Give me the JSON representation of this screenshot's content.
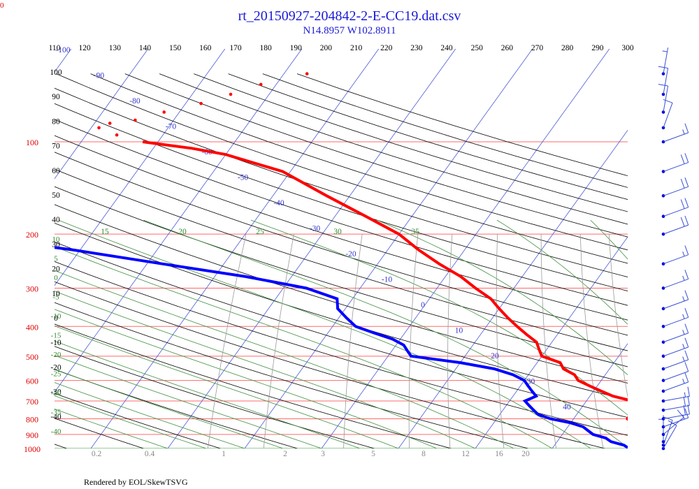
{
  "chart_data": {
    "type": "line",
    "title": "rt_20150927-204842-2-E-CC19.dat.csv",
    "subtitle": "N14.8957 W102.8911",
    "footer": "Rendered by EOL/SkewTSVG",
    "corner_label": "0",
    "pressure_labels": [
      "100",
      "200",
      "300",
      "400",
      "500",
      "600",
      "700",
      "800",
      "900",
      "1000"
    ],
    "theta_top_labels": [
      "110",
      "120",
      "130",
      "140",
      "150",
      "160",
      "170",
      "180",
      "190",
      "200",
      "210",
      "220",
      "230",
      "240",
      "250",
      "260",
      "270",
      "280",
      "290",
      "300"
    ],
    "theta_left_labels": [
      "100",
      "90",
      "80",
      "70",
      "60",
      "50",
      "40",
      "30",
      "20",
      "10",
      "0",
      "-10",
      "-20",
      "-30",
      "-40"
    ],
    "isotherm_labels": [
      "-100",
      "-90",
      "-80",
      "-70",
      "-60",
      "-50",
      "-40",
      "-30",
      "-20",
      "-10",
      "0",
      "10",
      "20",
      "30",
      "40"
    ],
    "moist_labels": [
      "15",
      "20",
      "25",
      "30",
      "35"
    ],
    "moist_left_labels": [
      "10",
      "5",
      "0",
      "-5",
      "-10",
      "-15",
      "-20",
      "-25",
      "-30",
      "-35",
      "-40"
    ],
    "mixing_labels": [
      "0.2",
      "0.4",
      "1",
      "2",
      "3",
      "5",
      "8",
      "12",
      "16",
      "20"
    ],
    "series": [
      {
        "color": "#ff0000",
        "temperature_c": [
          [
            1000,
            22
          ],
          [
            975,
            21
          ],
          [
            950,
            20
          ],
          [
            925,
            20
          ],
          [
            900,
            19
          ],
          [
            875,
            19
          ],
          [
            850,
            18
          ],
          [
            825,
            18
          ],
          [
            800,
            17
          ],
          [
            775,
            17
          ],
          [
            750,
            19
          ],
          [
            725,
            18
          ],
          [
            700,
            16
          ],
          [
            675,
            13
          ],
          [
            650,
            11
          ],
          [
            625,
            9
          ],
          [
            600,
            7
          ],
          [
            575,
            6
          ],
          [
            550,
            4
          ],
          [
            525,
            3
          ],
          [
            500,
            0
          ],
          [
            475,
            -1
          ],
          [
            450,
            -2
          ],
          [
            425,
            -4
          ],
          [
            400,
            -6
          ],
          [
            375,
            -8
          ],
          [
            350,
            -10
          ],
          [
            325,
            -12
          ],
          [
            300,
            -15
          ],
          [
            275,
            -18
          ],
          [
            250,
            -22
          ],
          [
            225,
            -26
          ],
          [
            200,
            -30
          ],
          [
            175,
            -36
          ],
          [
            150,
            -43
          ],
          [
            125,
            -51
          ],
          [
            110,
            -60
          ],
          [
            105,
            -65
          ],
          [
            100,
            -72
          ],
          [
            95,
            -76
          ],
          [
            90,
            -79
          ],
          [
            87,
            -78
          ],
          [
            85,
            -75
          ],
          [
            80,
            -72
          ],
          [
            75,
            -68
          ],
          [
            70,
            -65
          ],
          [
            65,
            -62
          ],
          [
            60,
            -57
          ]
        ]
      },
      {
        "color": "#0000ff",
        "dewpoint_c": [
          [
            1000,
            20
          ],
          [
            975,
            19
          ],
          [
            950,
            17
          ],
          [
            925,
            16
          ],
          [
            900,
            14
          ],
          [
            875,
            13
          ],
          [
            850,
            12
          ],
          [
            825,
            10
          ],
          [
            800,
            7
          ],
          [
            775,
            5
          ],
          [
            750,
            4
          ],
          [
            725,
            3
          ],
          [
            700,
            2
          ],
          [
            675,
            3
          ],
          [
            650,
            2
          ],
          [
            625,
            1
          ],
          [
            600,
            0
          ],
          [
            575,
            -2
          ],
          [
            550,
            -5
          ],
          [
            525,
            -10
          ],
          [
            500,
            -17
          ],
          [
            480,
            -18
          ],
          [
            460,
            -19
          ],
          [
            440,
            -21
          ],
          [
            420,
            -24
          ],
          [
            400,
            -27
          ],
          [
            375,
            -29
          ],
          [
            350,
            -31
          ],
          [
            325,
            -32
          ],
          [
            300,
            -37
          ],
          [
            275,
            -46
          ],
          [
            250,
            -58
          ],
          [
            225,
            -71
          ],
          [
            200,
            -88
          ]
        ]
      }
    ],
    "wind_barbs": [
      {
        "p": 1000,
        "dir": 210,
        "kt": 10
      },
      {
        "p": 975,
        "dir": 200,
        "kt": 10
      },
      {
        "p": 950,
        "dir": 180,
        "kt": 5
      },
      {
        "p": 900,
        "dir": 230,
        "kt": 10
      },
      {
        "p": 850,
        "dir": 250,
        "kt": 15
      },
      {
        "p": 800,
        "dir": 260,
        "kt": 20
      },
      {
        "p": 750,
        "dir": 260,
        "kt": 20
      },
      {
        "p": 700,
        "dir": 260,
        "kt": 15
      },
      {
        "p": 650,
        "dir": 250,
        "kt": 15
      },
      {
        "p": 600,
        "dir": 250,
        "kt": 10
      },
      {
        "p": 550,
        "dir": 250,
        "kt": 15
      },
      {
        "p": 500,
        "dir": 250,
        "kt": 15
      },
      {
        "p": 450,
        "dir": 250,
        "kt": 15
      },
      {
        "p": 400,
        "dir": 250,
        "kt": 15
      },
      {
        "p": 350,
        "dir": 250,
        "kt": 15
      },
      {
        "p": 300,
        "dir": 250,
        "kt": 15
      },
      {
        "p": 250,
        "dir": 250,
        "kt": 15
      },
      {
        "p": 200,
        "dir": 250,
        "kt": 20
      },
      {
        "p": 175,
        "dir": 250,
        "kt": 20
      },
      {
        "p": 150,
        "dir": 250,
        "kt": 20
      },
      {
        "p": 125,
        "dir": 250,
        "kt": 20
      },
      {
        "p": 100,
        "dir": 250,
        "kt": 15
      },
      {
        "p": 90,
        "dir": 200,
        "kt": 10
      },
      {
        "p": 80,
        "dir": 190,
        "kt": 10
      },
      {
        "p": 70,
        "dir": 190,
        "kt": 10
      },
      {
        "p": 60,
        "dir": 190,
        "kt": 5
      }
    ]
  }
}
